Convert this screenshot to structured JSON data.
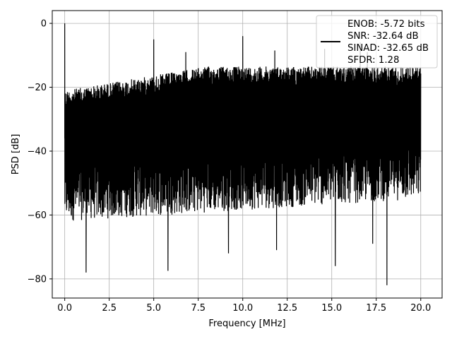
{
  "chart_data": {
    "type": "line",
    "title": "",
    "xlabel": "Frequency [MHz]",
    "ylabel": "PSD [dB]",
    "xlim": [
      -0.7,
      21.2
    ],
    "ylim": [
      -86,
      4
    ],
    "xticks": [
      0.0,
      2.5,
      5.0,
      7.5,
      10.0,
      12.5,
      15.0,
      17.5,
      20.0
    ],
    "xtick_labels": [
      "0.0",
      "2.5",
      "5.0",
      "7.5",
      "10.0",
      "12.5",
      "15.0",
      "17.5",
      "20.0"
    ],
    "yticks": [
      0,
      -20,
      -40,
      -60,
      -80
    ],
    "ytick_labels": [
      "0",
      "−20",
      "−40",
      "−60",
      "−80"
    ],
    "grid": true,
    "legend_position": "top-right",
    "legend_entries": [
      "ENOB: -5.72 bits",
      "SNR: -32.64 dB",
      "SINAD: -32.65 dB",
      "SFDR: 1.28"
    ],
    "series": [
      {
        "color": "#000000",
        "noise_floor": {
          "x_start": 0.0,
          "x_end": 20.0,
          "upper_envelope_db": [
            -21,
            -13.5
          ],
          "lower_envelope_db": [
            -62,
            -55
          ]
        },
        "peaks": [
          {
            "x": 0.0,
            "y": 0.0
          },
          {
            "x": 5.0,
            "y": -5.0
          },
          {
            "x": 6.8,
            "y": -9.0
          },
          {
            "x": 10.0,
            "y": -4.0
          },
          {
            "x": 11.8,
            "y": -8.5
          },
          {
            "x": 14.6,
            "y": -8.0
          },
          {
            "x": 16.6,
            "y": -6.0
          },
          {
            "x": 17.0,
            "y": -9.0
          }
        ],
        "troughs": [
          {
            "x": 1.2,
            "y": -78.0
          },
          {
            "x": 5.8,
            "y": -77.5
          },
          {
            "x": 9.2,
            "y": -72.0
          },
          {
            "x": 11.9,
            "y": -71.0
          },
          {
            "x": 15.2,
            "y": -76.0
          },
          {
            "x": 17.3,
            "y": -69.0
          },
          {
            "x": 18.1,
            "y": -82.0
          }
        ]
      }
    ]
  }
}
